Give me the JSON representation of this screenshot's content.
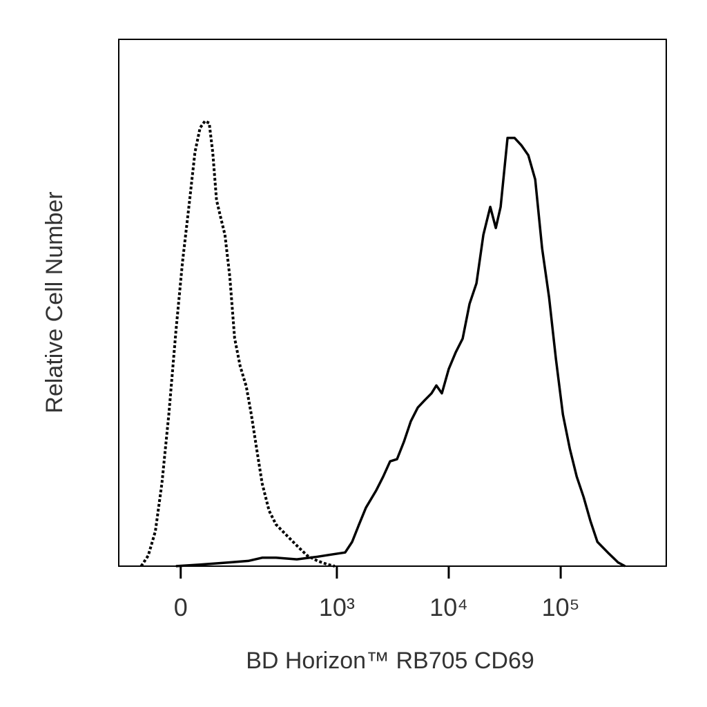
{
  "chart_data": {
    "type": "histogram-overlay",
    "xlabel": "BD Horizon™ RB705 CD69",
    "ylabel": "Relative Cell Number",
    "xscale": "biexponential",
    "xlim": [
      -133,
      877000
    ],
    "ylim": [
      0,
      100
    ],
    "xticks": [
      0,
      {
        "value": 1000,
        "label": "10³"
      },
      {
        "value": 10000,
        "label": "10⁴"
      },
      {
        "value": 100000,
        "label": "10⁵"
      }
    ],
    "series": [
      {
        "color": "#000000",
        "dash": "dotted",
        "x": [
          -73,
          -58,
          -44,
          -32,
          -20,
          -8,
          3,
          15,
          24,
          33,
          42,
          50,
          57,
          65,
          74,
          84,
          96,
          109,
          125,
          145,
          163,
          184,
          208,
          242,
          281,
          350,
          436,
          541,
          671,
          831,
          958
        ],
        "values": [
          0,
          2.0,
          6.6,
          15.7,
          28.8,
          44.6,
          57.7,
          69.5,
          78.6,
          83.2,
          84.5,
          84.1,
          78.6,
          69.5,
          66.2,
          62.9,
          55.0,
          43.3,
          38.0,
          34.1,
          28.8,
          22.3,
          15.7,
          10.5,
          7.9,
          5.9,
          3.9,
          2.0,
          1.0,
          0.3,
          0
        ]
      },
      {
        "color": "#000000",
        "dash": "solid",
        "x": [
          -8,
          33,
          91,
          152,
          208,
          281,
          436,
          671,
          892,
          1187,
          1369,
          1578,
          1819,
          2251,
          2595,
          2992,
          3449,
          3977,
          4584,
          5286,
          6093,
          7021,
          7755,
          8683,
          10000,
          11548,
          13308,
          15341,
          17689,
          20385,
          23500,
          26332,
          29076,
          33530,
          38655,
          44546,
          51366,
          59193,
          68232,
          78683,
          90666,
          104587,
          120566,
          138965,
          160190,
          184642,
          212846,
          263243,
          325867,
          375659
        ],
        "values": [
          0,
          0.3,
          0.7,
          1.0,
          1.6,
          1.6,
          1.3,
          1.8,
          2.2,
          2.6,
          4.6,
          7.9,
          11.1,
          14.4,
          17.0,
          19.9,
          20.3,
          23.6,
          27.5,
          30.1,
          31.5,
          32.8,
          34.3,
          32.8,
          37.4,
          40.6,
          43.2,
          49.8,
          53.7,
          62.9,
          68.2,
          64.2,
          68.2,
          81.3,
          81.3,
          79.9,
          78.0,
          73.4,
          60.3,
          51.1,
          39.3,
          28.8,
          22.3,
          17.0,
          13.1,
          8.5,
          4.6,
          2.6,
          0.7,
          0
        ]
      }
    ]
  }
}
